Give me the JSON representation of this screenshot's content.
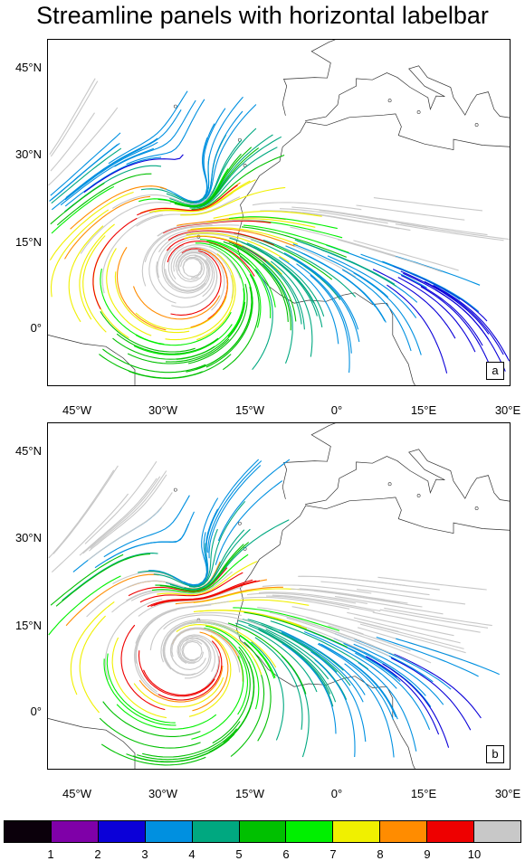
{
  "title": "Streamline panels with horizontal labelbar",
  "panels": [
    {
      "letter": "a"
    },
    {
      "letter": "b"
    }
  ],
  "axes": {
    "y_ticks": [
      "45°N",
      "30°N",
      "15°N",
      "0°"
    ],
    "x_ticks": [
      "45°W",
      "30°W",
      "15°W",
      "0°",
      "15°E",
      "30°E"
    ]
  },
  "labelbar": {
    "colors": [
      "#0b000b",
      "#7f00a8",
      "#0b00d8",
      "#0090e0",
      "#00a880",
      "#00c000",
      "#00f000",
      "#f0f000",
      "#ff8c00",
      "#ee0000",
      "#c8c8c8"
    ],
    "labels": [
      "1",
      "2",
      "3",
      "4",
      "5",
      "6",
      "7",
      "8",
      "9",
      "10"
    ]
  }
}
